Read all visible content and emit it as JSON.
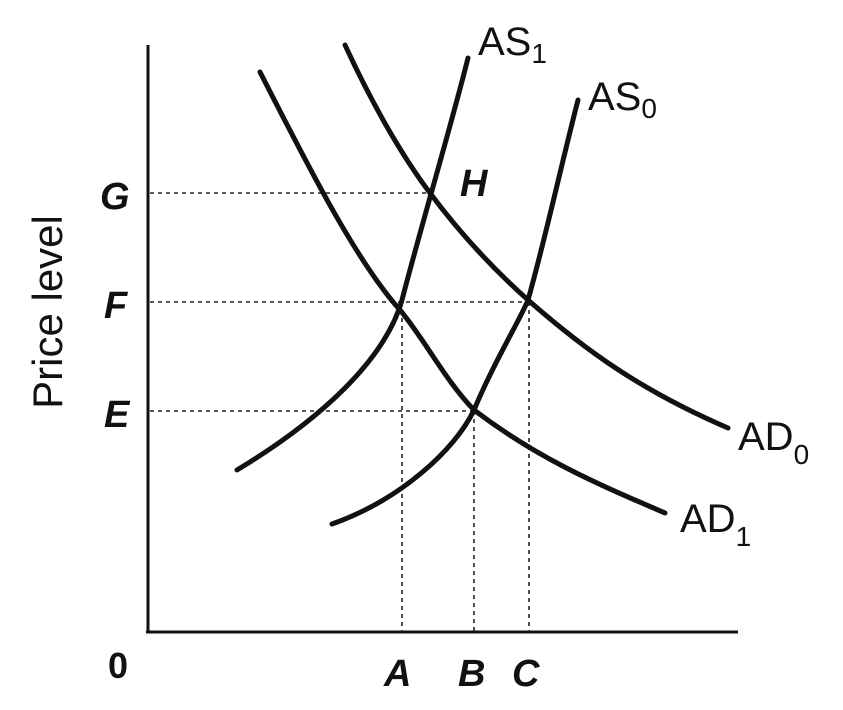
{
  "diagram": {
    "y_axis_title": "Price level",
    "origin_label": "0",
    "price_levels": [
      "G",
      "F",
      "E"
    ],
    "output_levels": [
      "A",
      "B",
      "C"
    ],
    "intersection_label": "H",
    "curves": {
      "as1": {
        "base": "AS",
        "sub": "1"
      },
      "as0": {
        "base": "AS",
        "sub": "0"
      },
      "ad0": {
        "base": "AD",
        "sub": "0"
      },
      "ad1": {
        "base": "AD",
        "sub": "1"
      }
    }
  }
}
